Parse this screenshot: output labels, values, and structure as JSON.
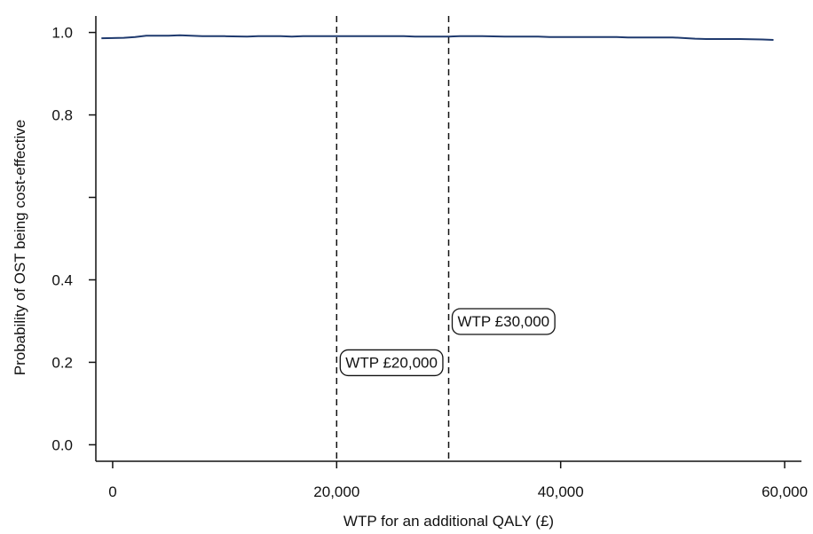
{
  "chart_data": {
    "type": "line",
    "title": "",
    "xlabel": "WTP for an additional QALY (£)",
    "ylabel": "Probability of OST being cost-effective",
    "xlim": [
      -1500,
      61500
    ],
    "ylim": [
      -0.04,
      1.04
    ],
    "x_ticks": [
      {
        "value": 0,
        "label": "0"
      },
      {
        "value": 20000,
        "label": "20,000"
      },
      {
        "value": 40000,
        "label": "40,000"
      },
      {
        "value": 60000,
        "label": "60,000"
      }
    ],
    "y_ticks": [
      {
        "value": 0.0,
        "label": "0.0"
      },
      {
        "value": 0.2,
        "label": "0.2"
      },
      {
        "value": 0.4,
        "label": "0.4"
      },
      {
        "value": 0.6,
        "label": ""
      },
      {
        "value": 0.8,
        "label": "0.8"
      },
      {
        "value": 1.0,
        "label": "1.0"
      }
    ],
    "series": [
      {
        "color": "#1f3a6e",
        "x": [
          -1000,
          1000,
          2000,
          3000,
          4000,
          5000,
          6000,
          7000,
          8000,
          10000,
          12000,
          13000,
          15000,
          16000,
          17000,
          20000,
          23000,
          26000,
          27000,
          29000,
          30000,
          31000,
          33000,
          35000,
          38000,
          39000,
          40000,
          43000,
          45000,
          46000,
          48000,
          50000,
          52000,
          53000,
          55000,
          56000,
          58000,
          59000
        ],
        "y": [
          0.986,
          0.987,
          0.989,
          0.992,
          0.992,
          0.992,
          0.993,
          0.992,
          0.991,
          0.991,
          0.99,
          0.991,
          0.991,
          0.99,
          0.991,
          0.991,
          0.991,
          0.991,
          0.99,
          0.99,
          0.99,
          0.991,
          0.991,
          0.99,
          0.99,
          0.989,
          0.989,
          0.989,
          0.989,
          0.988,
          0.988,
          0.988,
          0.985,
          0.984,
          0.984,
          0.984,
          0.983,
          0.982
        ]
      }
    ],
    "reference_lines": [
      {
        "x": 20000,
        "label": "WTP £20,000",
        "label_y": 0.2
      },
      {
        "x": 30000,
        "label": "WTP £30,000",
        "label_y": 0.3
      }
    ],
    "grid": false,
    "legend": "none"
  }
}
